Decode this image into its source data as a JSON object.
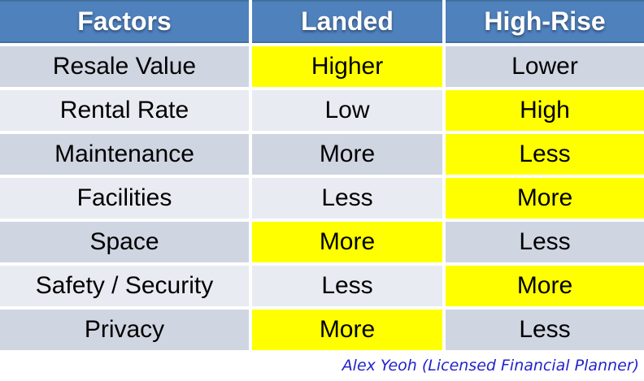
{
  "table": {
    "columns": [
      "Factors",
      "Landed",
      "High-Rise"
    ],
    "rows": [
      {
        "factor": "Resale Value",
        "landed": "Higher",
        "high_rise": "Lower",
        "highlight": "landed"
      },
      {
        "factor": "Rental Rate",
        "landed": "Low",
        "high_rise": "High",
        "highlight": "high_rise"
      },
      {
        "factor": "Maintenance",
        "landed": "More",
        "high_rise": "Less",
        "highlight": "high_rise"
      },
      {
        "factor": "Facilities",
        "landed": "Less",
        "high_rise": "More",
        "highlight": "high_rise"
      },
      {
        "factor": "Space",
        "landed": "More",
        "high_rise": "Less",
        "highlight": "landed"
      },
      {
        "factor": "Safety / Security",
        "landed": "Less",
        "high_rise": "More",
        "highlight": "high_rise"
      },
      {
        "factor": "Privacy",
        "landed": "More",
        "high_rise": "Less",
        "highlight": "landed"
      }
    ]
  },
  "footer": {
    "attribution": "Alex Yeoh (Licensed Financial Planner)"
  },
  "colors": {
    "header_bg": "#4F81BD",
    "header_border": "#41719C",
    "row_dark": "#D0D5E2",
    "row_light": "#E9EBF2",
    "highlight": "#FFFF00",
    "attribution": "#2323CD"
  }
}
